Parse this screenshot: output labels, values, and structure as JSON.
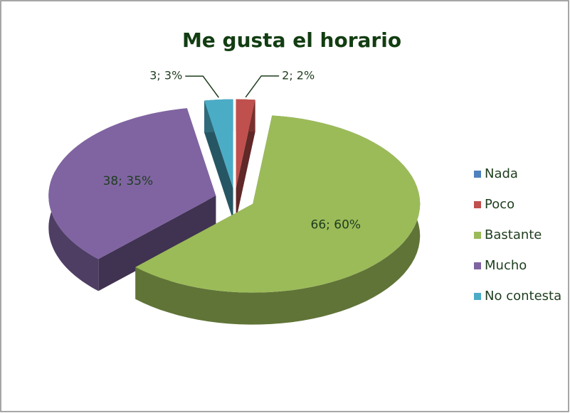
{
  "chart_data": {
    "type": "pie",
    "title": "Me gusta el horario",
    "categories": [
      "Nada",
      "Poco",
      "Bastante",
      "Mucho",
      "No contesta"
    ],
    "values": [
      0,
      2,
      66,
      38,
      3
    ],
    "value_labels": [
      null,
      "2; 2%",
      "66; 60%",
      "38; 35%",
      "3; 3%"
    ],
    "colors": [
      "#4f81bd",
      "#c0504d",
      "#9bbb59",
      "#8064a2",
      "#4bacc6"
    ],
    "legend": "right"
  }
}
